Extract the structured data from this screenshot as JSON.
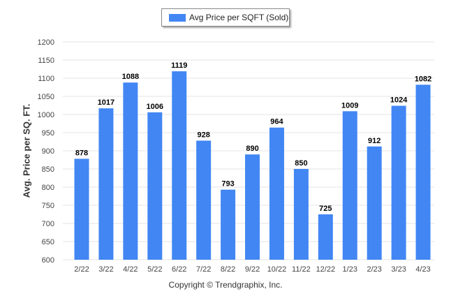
{
  "chart_data": {
    "type": "bar",
    "categories": [
      "2/22",
      "3/22",
      "4/22",
      "5/22",
      "6/22",
      "7/22",
      "8/22",
      "9/22",
      "10/22",
      "11/22",
      "12/22",
      "1/23",
      "2/23",
      "3/23",
      "4/23"
    ],
    "series": [
      {
        "name": "Avg Price per SQFT (Sold)",
        "values": [
          878,
          1017,
          1088,
          1006,
          1119,
          928,
          793,
          890,
          964,
          850,
          725,
          1009,
          912,
          1024,
          1082
        ]
      }
    ],
    "ylabel": "Avg. Price per SQ. FT.",
    "xlabel": "",
    "ylim": [
      600,
      1200
    ],
    "yticks": [
      600,
      650,
      700,
      750,
      800,
      850,
      900,
      950,
      1000,
      1050,
      1100,
      1150,
      1200
    ],
    "grid": true,
    "legend": "top-center",
    "data_labels": true,
    "bar_color": "#4286f4"
  },
  "footer": {
    "copyright": "Copyright © Trendgraphix, Inc."
  }
}
